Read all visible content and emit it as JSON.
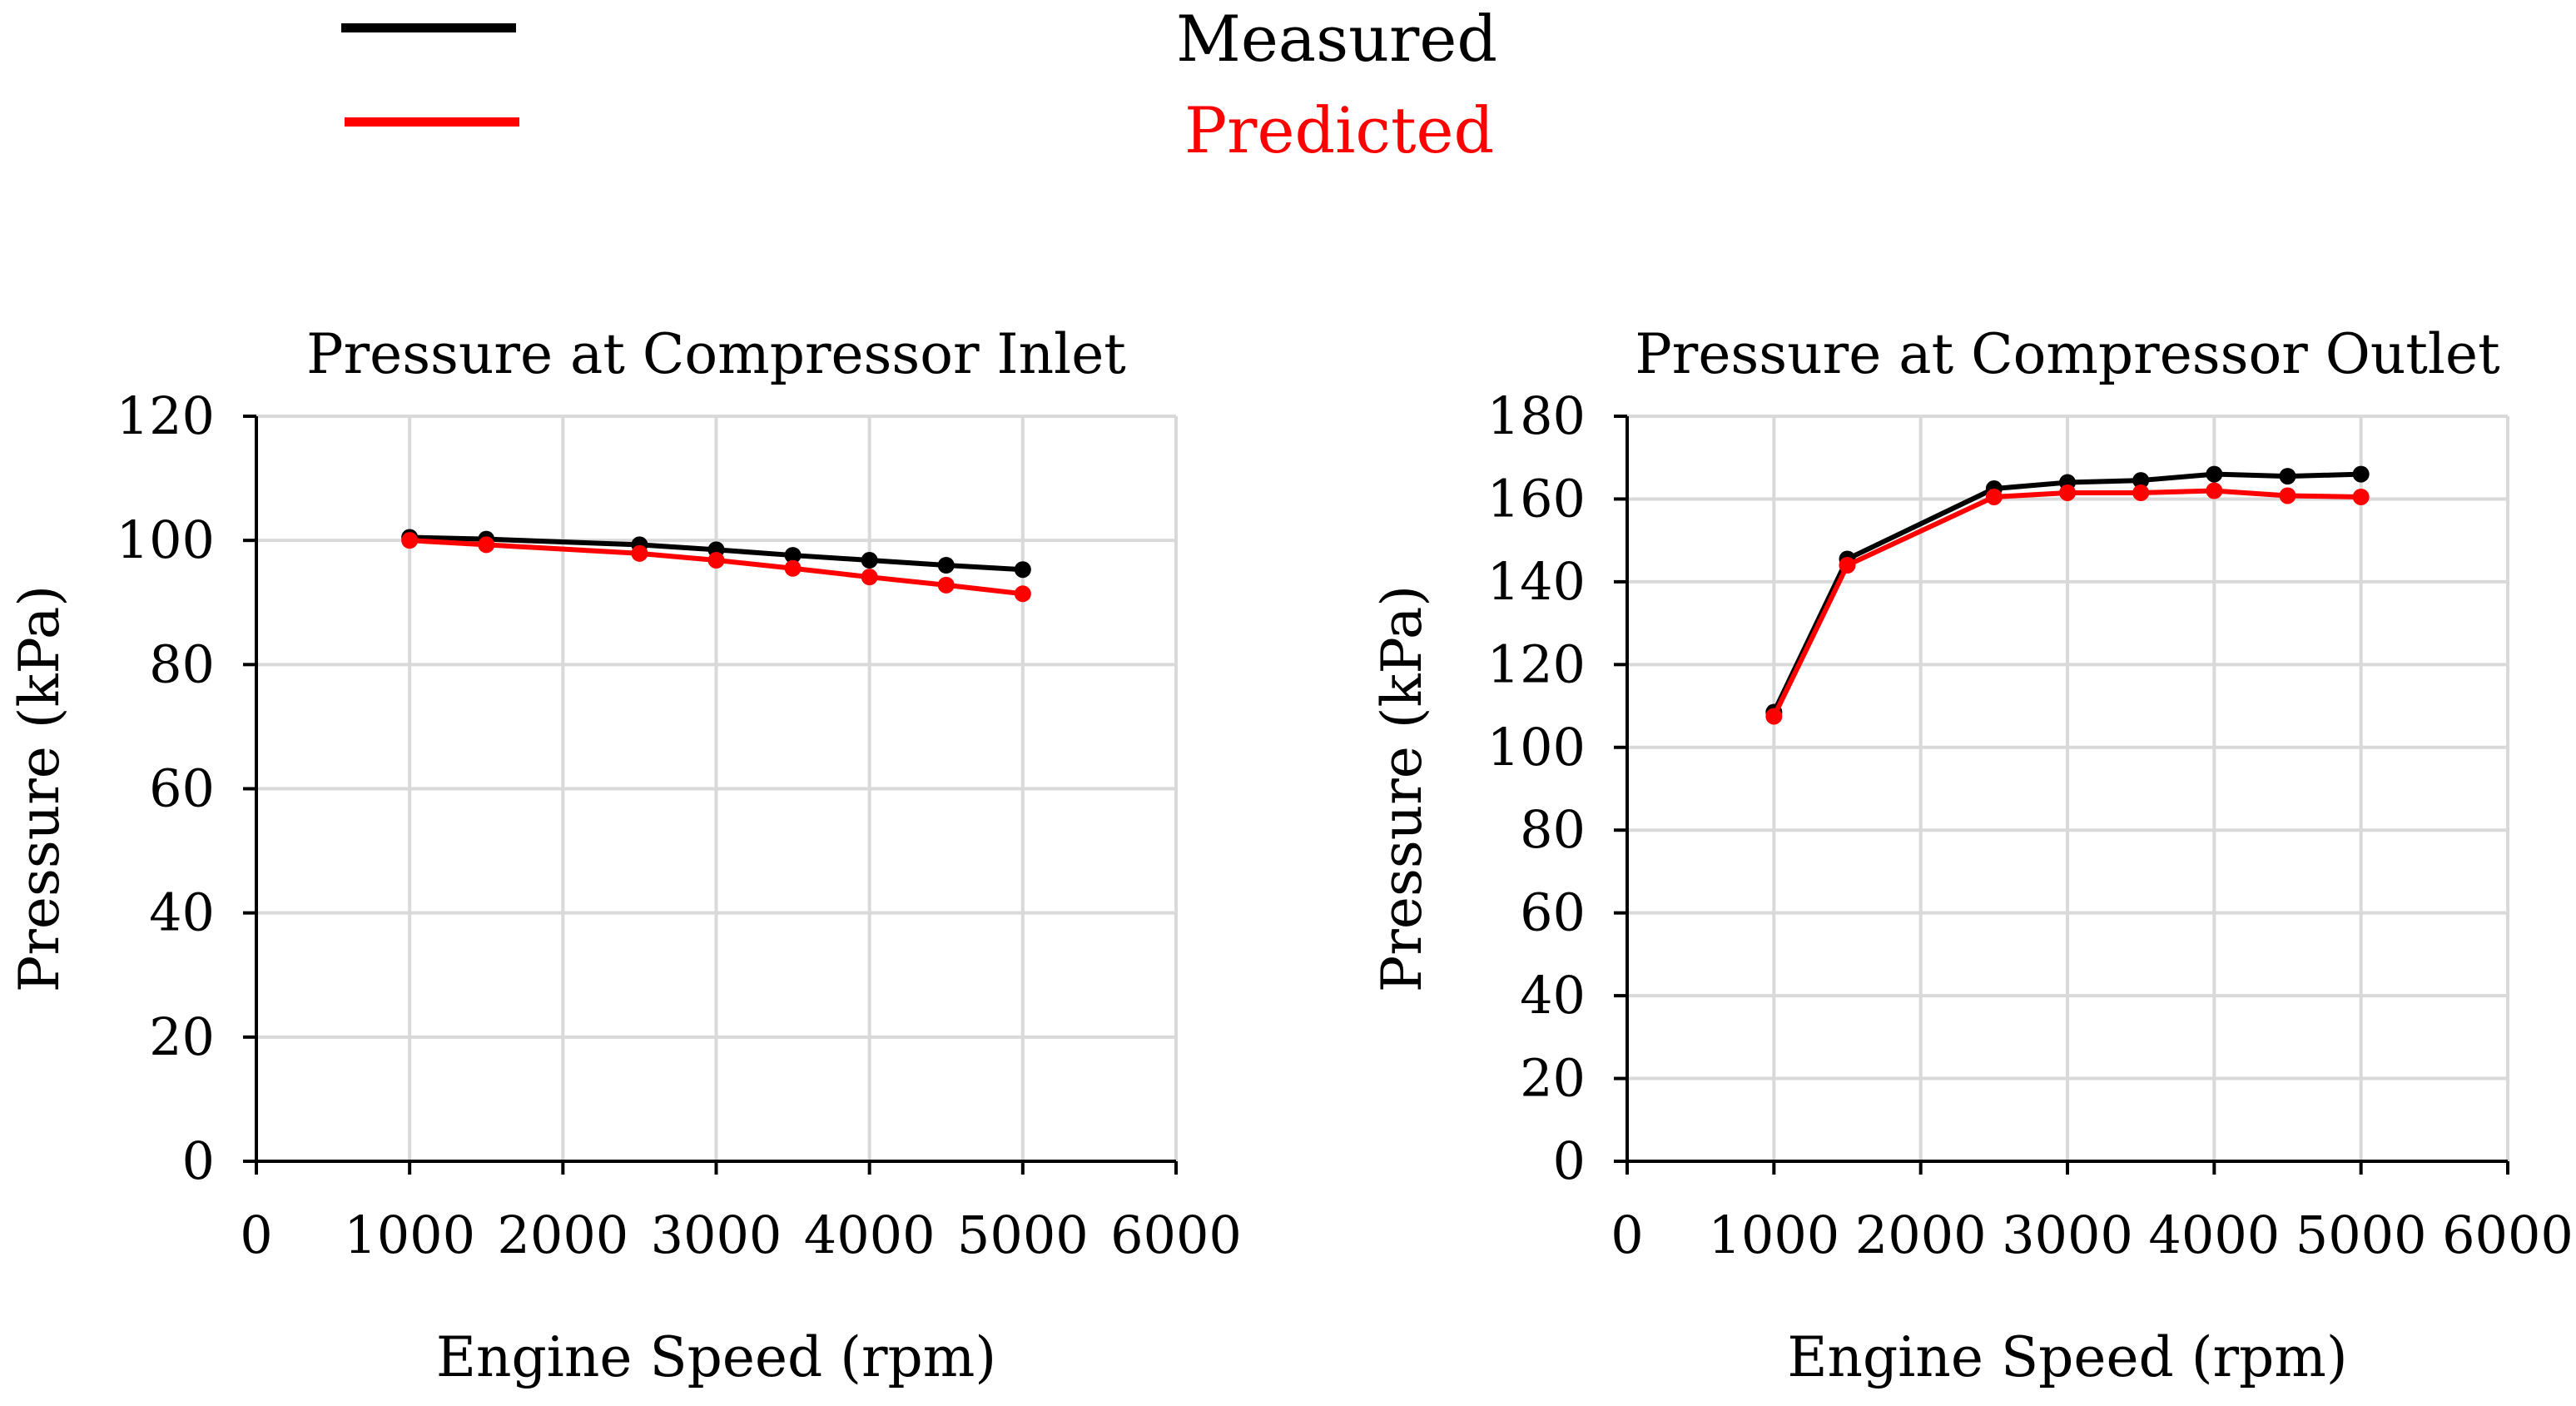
{
  "legend": {
    "items": [
      {
        "label": "Measured",
        "color": "#000000"
      },
      {
        "label": "Predicted",
        "color": "#ff0000"
      }
    ]
  },
  "colors": {
    "grid": "#d9d9d9",
    "axis": "#000000",
    "measured": "#000000",
    "predicted": "#ff0000"
  },
  "chart_data": [
    {
      "type": "line",
      "title": "Pressure at Compressor Inlet",
      "xlabel": "Engine Speed (rpm)",
      "ylabel": "Pressure (kPa)",
      "xlim": [
        0,
        6000
      ],
      "ylim": [
        0,
        120
      ],
      "xticks": [
        0,
        1000,
        2000,
        3000,
        4000,
        5000,
        6000
      ],
      "yticks": [
        0,
        20,
        40,
        60,
        80,
        100,
        120
      ],
      "grid": true,
      "x": [
        1000,
        1500,
        2500,
        3000,
        3500,
        4000,
        4500,
        5000
      ],
      "series": [
        {
          "name": "Measured",
          "color": "#000000",
          "values": [
            100.5,
            100.2,
            99.3,
            98.5,
            97.6,
            96.8,
            96.0,
            95.3
          ]
        },
        {
          "name": "Predicted",
          "color": "#ff0000",
          "values": [
            100.0,
            99.3,
            97.9,
            96.8,
            95.5,
            94.1,
            92.8,
            91.4
          ]
        }
      ]
    },
    {
      "type": "line",
      "title": "Pressure at Compressor Outlet",
      "xlabel": "Engine Speed (rpm)",
      "ylabel": "Pressure (kPa)",
      "xlim": [
        0,
        6000
      ],
      "ylim": [
        0,
        180
      ],
      "xticks": [
        0,
        1000,
        2000,
        3000,
        4000,
        5000,
        6000
      ],
      "yticks": [
        0,
        20,
        40,
        60,
        80,
        100,
        120,
        140,
        160,
        180
      ],
      "grid": true,
      "x": [
        1000,
        1500,
        2500,
        3000,
        3500,
        4000,
        4500,
        5000
      ],
      "series": [
        {
          "name": "Measured",
          "color": "#000000",
          "values": [
            108.5,
            145.5,
            162.5,
            164.0,
            164.5,
            166.0,
            165.5,
            166.0
          ]
        },
        {
          "name": "Predicted",
          "color": "#ff0000",
          "values": [
            107.5,
            144.0,
            160.5,
            161.5,
            161.5,
            162.0,
            160.8,
            160.5
          ]
        }
      ]
    }
  ]
}
